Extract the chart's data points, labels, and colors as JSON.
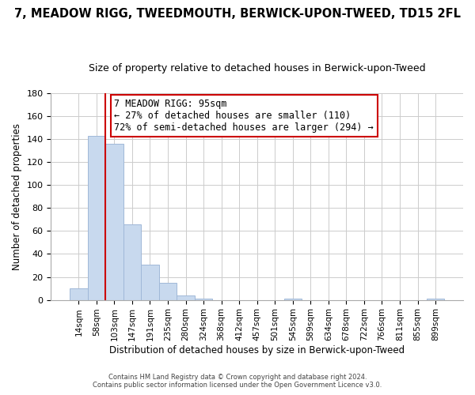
{
  "title": "7, MEADOW RIGG, TWEEDMOUTH, BERWICK-UPON-TWEED, TD15 2FL",
  "subtitle": "Size of property relative to detached houses in Berwick-upon-Tweed",
  "xlabel": "Distribution of detached houses by size in Berwick-upon-Tweed",
  "ylabel": "Number of detached properties",
  "bar_labels": [
    "14sqm",
    "58sqm",
    "103sqm",
    "147sqm",
    "191sqm",
    "235sqm",
    "280sqm",
    "324sqm",
    "368sqm",
    "412sqm",
    "457sqm",
    "501sqm",
    "545sqm",
    "589sqm",
    "634sqm",
    "678sqm",
    "722sqm",
    "766sqm",
    "811sqm",
    "855sqm",
    "899sqm"
  ],
  "bar_values": [
    10,
    143,
    136,
    66,
    31,
    15,
    4,
    1,
    0,
    0,
    0,
    0,
    1,
    0,
    0,
    0,
    0,
    0,
    0,
    0,
    1
  ],
  "bar_color": "#c8d9ee",
  "bar_edge_color": "#a0b8d8",
  "vline_x": 1.5,
  "vline_color": "#cc0000",
  "ylim": [
    0,
    180
  ],
  "yticks": [
    0,
    20,
    40,
    60,
    80,
    100,
    120,
    140,
    160,
    180
  ],
  "annotation_text_line1": "7 MEADOW RIGG: 95sqm",
  "annotation_text_line2": "← 27% of detached houses are smaller (110)",
  "annotation_text_line3": "72% of semi-detached houses are larger (294) →",
  "footer_line1": "Contains HM Land Registry data © Crown copyright and database right 2024.",
  "footer_line2": "Contains public sector information licensed under the Open Government Licence v3.0.",
  "background_color": "#ffffff",
  "grid_color": "#cccccc",
  "title_fontsize": 10.5,
  "subtitle_fontsize": 9
}
